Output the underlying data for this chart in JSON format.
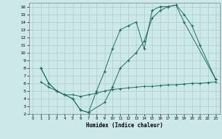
{
  "xlabel": "Humidex (Indice chaleur)",
  "background_color": "#cce8e8",
  "grid_color": "#aacccc",
  "line_color": "#1a6b5a",
  "xlim": [
    -0.5,
    23.5
  ],
  "ylim": [
    2,
    16.5
  ],
  "xticks": [
    0,
    1,
    2,
    3,
    4,
    5,
    6,
    7,
    8,
    9,
    10,
    11,
    12,
    13,
    14,
    15,
    16,
    17,
    18,
    19,
    20,
    21,
    22,
    23
  ],
  "yticks": [
    2,
    3,
    4,
    5,
    6,
    7,
    8,
    9,
    10,
    11,
    12,
    13,
    14,
    15,
    16
  ],
  "curve1_x": [
    1,
    2,
    3,
    4,
    5,
    6,
    7,
    9,
    10,
    11,
    12,
    13,
    14,
    15,
    16,
    17,
    18,
    19,
    20,
    21,
    23
  ],
  "curve1_y": [
    8,
    6,
    5,
    4.5,
    4,
    2.5,
    2.2,
    3.5,
    5.5,
    8,
    9,
    10,
    11.5,
    14.5,
    15.5,
    16,
    16.2,
    15,
    13.5,
    11,
    6.5
  ],
  "curve2_x": [
    1,
    2,
    3,
    4,
    5,
    6,
    7,
    8,
    9,
    10,
    11,
    12,
    13,
    14,
    15,
    16,
    17,
    18,
    19,
    20,
    21,
    22,
    23
  ],
  "curve2_y": [
    6.2,
    5.5,
    5.0,
    4.5,
    4.5,
    4.3,
    4.5,
    4.7,
    5.0,
    5.2,
    5.3,
    5.4,
    5.5,
    5.6,
    5.6,
    5.7,
    5.8,
    5.8,
    5.9,
    6.0,
    6.0,
    6.1,
    6.2
  ],
  "curve3_x": [
    1,
    2,
    3,
    4,
    5,
    6,
    7,
    8,
    9,
    10,
    11,
    12,
    13,
    14,
    15,
    16,
    17,
    18,
    19,
    23
  ],
  "curve3_y": [
    8,
    6,
    5,
    4.5,
    4,
    2.5,
    2.2,
    5,
    7.5,
    10.5,
    13,
    13.5,
    14,
    10.5,
    15.5,
    16,
    16,
    16.2,
    14,
    6.5
  ]
}
